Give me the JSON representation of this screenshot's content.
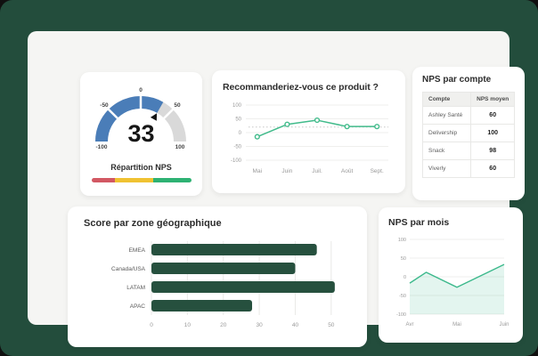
{
  "app": {
    "background_color": "#234d3c",
    "panel_color": "#f5f5f3",
    "card_color": "#ffffff"
  },
  "gauge_card": {
    "title": "Répartition NPS",
    "value": "33"
  },
  "produit_card": {
    "title": "Recommanderiez-vous ce produit ?"
  },
  "compte_card": {
    "title": "NPS par compte"
  },
  "geo_card": {
    "title": "Score par zone géographique"
  },
  "mois_card": {
    "title": "NPS par mois"
  },
  "chart_data": [
    {
      "card": "gauge",
      "type": "gauge",
      "title": "Répartition NPS",
      "value": 33,
      "min": -100,
      "max": 100,
      "ticks": [
        "-100",
        "-50",
        "0",
        "50",
        "100"
      ],
      "fill_color": "#4a7db8",
      "track_color": "#d9d9d9",
      "legend_segment_colors": [
        "#d25863",
        "#f0c232",
        "#2eb273"
      ]
    },
    {
      "card": "produit",
      "type": "line",
      "title": "Recommanderiez-vous ce produit ?",
      "categories": [
        "Mai",
        "Juin",
        "Juil.",
        "Août",
        "Sept."
      ],
      "values": [
        -15,
        30,
        45,
        22,
        22
      ],
      "reference_line": 20,
      "yticks": [
        100,
        50,
        0,
        -50,
        -100
      ],
      "ylim": [
        -100,
        100
      ],
      "grid": true,
      "line_color": "#41bb8b"
    },
    {
      "card": "compte",
      "type": "table",
      "title": "NPS par compte",
      "columns": [
        "Compte",
        "NPS moyen"
      ],
      "rows": [
        [
          "Ashley Santé",
          "60"
        ],
        [
          "Delivership",
          "100"
        ],
        [
          "Snack",
          "98"
        ],
        [
          "Viverly",
          "60"
        ]
      ]
    },
    {
      "card": "geo",
      "type": "bar",
      "orientation": "horizontal",
      "title": "Score par zone géographique",
      "categories": [
        "EMEA",
        "Canada/USA",
        "LATAM",
        "APAC"
      ],
      "values": [
        46,
        40,
        51,
        28
      ],
      "xticks": [
        0,
        10,
        20,
        30,
        40,
        50
      ],
      "xlim": [
        0,
        55
      ],
      "grid": true,
      "bar_color": "#26503e"
    },
    {
      "card": "mois",
      "type": "area",
      "title": "NPS par mois",
      "x": [
        0,
        0.35,
        1,
        2
      ],
      "y": [
        -17,
        12,
        -28,
        33
      ],
      "x_labels": [
        "Avr",
        "Mai",
        "Juin"
      ],
      "x_label_positions": [
        0,
        1,
        2
      ],
      "yticks": [
        100,
        50,
        0,
        -50,
        -100
      ],
      "ylim": [
        -100,
        100
      ],
      "grid": true,
      "line_color": "#3cb98c",
      "fill_color": "rgba(60,185,140,0.14)"
    }
  ]
}
